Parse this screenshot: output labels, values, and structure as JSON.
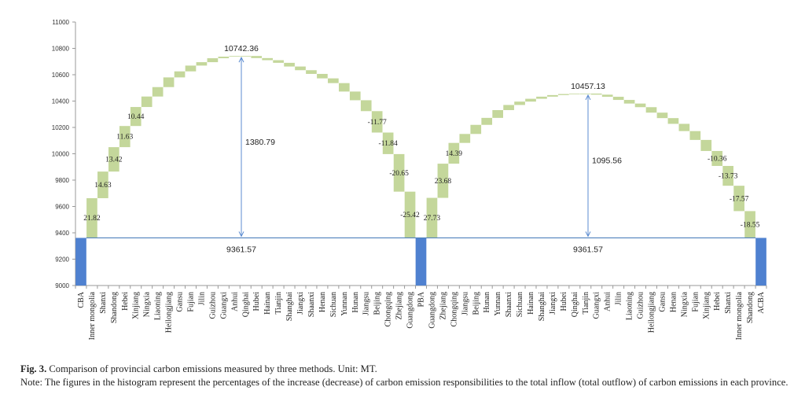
{
  "chart_data": {
    "type": "waterfall",
    "ylim": [
      9000,
      11000
    ],
    "yticks": [
      9000,
      9200,
      9400,
      9600,
      9800,
      10000,
      10200,
      10400,
      10600,
      10800,
      11000
    ],
    "grid": false,
    "colors": {
      "total": "#4f81d0",
      "step": "#c4d79b",
      "line": "#4f81bd",
      "arrow": "#5b8bd0"
    },
    "categories": [
      "CBA",
      "Inner mongolia",
      "Shanxi",
      "Shandong",
      "Hebei",
      "Xinjiang",
      "Ningxia",
      "Liaoning",
      "Heilongjiang",
      "Gansu",
      "Fujian",
      "Jilin",
      "Guizhou",
      "Guangxi",
      "Anhui",
      "Qinghai",
      "Hubei",
      "Hainan",
      "Tianjin",
      "Shanghai",
      "Jiangxi",
      "Shaanxi",
      "Henan",
      "Sichuan",
      "Yunnan",
      "Hunan",
      "Jiangsu",
      "Beijing",
      "Chongqing",
      "Zhejiang",
      "Guangdong",
      "PBA",
      "Guangdong",
      "Zhejiang",
      "Chongqing",
      "Jiangsu",
      "Beijing",
      "Hunan",
      "Yunnan",
      "Shaanxi",
      "Sichuan",
      "Hainan",
      "Shanghai",
      "Jiangxi",
      "Hubei",
      "Qinghai",
      "Tianjin",
      "Guangxi",
      "Anhui",
      "Jilin",
      "Liaoning",
      "Guizhou",
      "Heilongjiang",
      "Gansu",
      "Henan",
      "Ningxia",
      "Fujian",
      "Xinjiang",
      "Hebei",
      "Shanxi",
      "Inner mongolia",
      "Shandong",
      "ACBA"
    ],
    "values": [
      9361.57,
      301.29,
      202.01,
      185.3,
      160.59,
      144.15,
      79.6,
      71.6,
      73.6,
      45.8,
      43.8,
      25.9,
      29.9,
      11.9,
      5.0,
      0.3,
      -16,
      -16,
      -20,
      -28,
      -28,
      -28,
      -34,
      -36,
      -64,
      -66,
      -82.7,
      -162.52,
      -163.49,
      -285.13,
      -351.0,
      9361.57,
      303.8,
      259.4,
      157.7,
      68,
      69,
      53,
      59,
      39,
      25.5,
      21.5,
      16,
      12,
      8,
      3.5,
      0.16,
      -8.46,
      -16,
      -24,
      -27.5,
      -27.5,
      -41.5,
      -41.5,
      -43.5,
      -55,
      -67,
      -84,
      -113.5,
      -150.42,
      -192.49,
      -203.23,
      9361.57
    ],
    "is_total": [
      true,
      false,
      false,
      false,
      false,
      false,
      false,
      false,
      false,
      false,
      false,
      false,
      false,
      false,
      false,
      false,
      false,
      false,
      false,
      false,
      false,
      false,
      false,
      false,
      false,
      false,
      false,
      false,
      false,
      false,
      false,
      true,
      false,
      false,
      false,
      false,
      false,
      false,
      false,
      false,
      false,
      false,
      false,
      false,
      false,
      false,
      false,
      false,
      false,
      false,
      false,
      false,
      false,
      false,
      false,
      false,
      false,
      false,
      false,
      false,
      false,
      false,
      true
    ],
    "data_labels": {
      "1": "21.82",
      "2": "14.63",
      "3": "13.42",
      "4": "11.63",
      "5": "10.44",
      "27": "-11.77",
      "28": "-11.84",
      "29": "-20.65",
      "30": "-25.42",
      "32": "27.73",
      "33": "23.68",
      "34": "14.39",
      "58": "-10.36",
      "59": "-13.73",
      "60": "-17.57",
      "61": "-18.55"
    },
    "annotations": [
      {
        "text": "10742.36",
        "kind": "peak",
        "value": 10742.36
      },
      {
        "text": "1380.79",
        "kind": "span",
        "value": 1380.79
      },
      {
        "text": "9361.57",
        "kind": "base",
        "value": 9361.57
      },
      {
        "text": "10457.13",
        "kind": "peak",
        "value": 10457.13
      },
      {
        "text": "1095.56",
        "kind": "span",
        "value": 1095.56
      },
      {
        "text": "9361.57",
        "kind": "base",
        "value": 9361.57
      }
    ]
  },
  "caption": {
    "fig_label": "Fig. 3.",
    "title": " Comparison of provincial carbon emissions measured by three methods. Unit: MT.",
    "note": "Note: The figures in the histogram represent the percentages of the increase (decrease) of carbon emission responsibilities to the total inflow (total outflow) of carbon emissions in each province."
  }
}
